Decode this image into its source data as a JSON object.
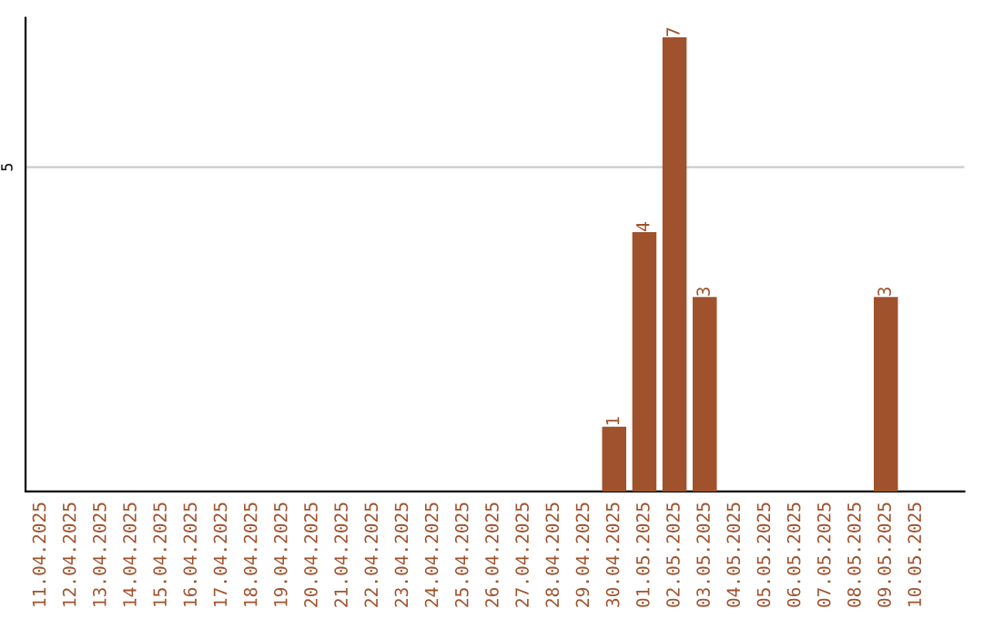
{
  "chart_data": {
    "type": "bar",
    "categories": [
      "11.04.2025",
      "12.04.2025",
      "13.04.2025",
      "14.04.2025",
      "15.04.2025",
      "16.04.2025",
      "17.04.2025",
      "18.04.2025",
      "19.04.2025",
      "20.04.2025",
      "21.04.2025",
      "22.04.2025",
      "23.04.2025",
      "24.04.2025",
      "25.04.2025",
      "26.04.2025",
      "27.04.2025",
      "28.04.2025",
      "29.04.2025",
      "30.04.2025",
      "01.05.2025",
      "02.05.2025",
      "03.05.2025",
      "04.05.2025",
      "05.05.2025",
      "06.05.2025",
      "07.05.2025",
      "08.05.2025",
      "09.05.2025",
      "10.05.2025"
    ],
    "values": [
      null,
      null,
      null,
      null,
      null,
      null,
      null,
      null,
      null,
      null,
      null,
      null,
      null,
      null,
      null,
      null,
      null,
      null,
      null,
      1,
      4,
      7,
      3,
      null,
      null,
      null,
      null,
      null,
      3,
      null
    ],
    "value_labels": [
      null,
      null,
      null,
      null,
      null,
      null,
      null,
      null,
      null,
      null,
      null,
      null,
      null,
      null,
      null,
      null,
      null,
      null,
      null,
      "1",
      "4",
      "7",
      "3",
      null,
      null,
      null,
      null,
      null,
      "3",
      null
    ],
    "color": "#a0522d",
    "ylim": [
      0,
      7.3
    ],
    "ref_lines": [
      {
        "axis": "y",
        "value": 5,
        "label": "5",
        "color": "#cccccc"
      }
    ]
  }
}
